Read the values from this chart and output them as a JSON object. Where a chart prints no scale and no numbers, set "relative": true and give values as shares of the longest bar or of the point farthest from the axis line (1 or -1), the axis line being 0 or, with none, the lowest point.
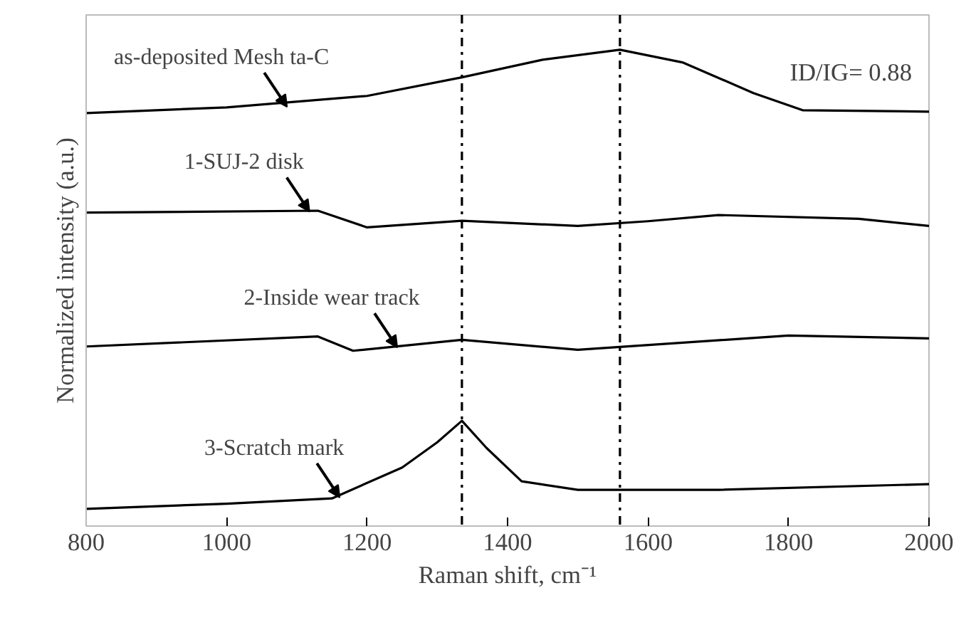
{
  "chart_data": {
    "type": "line",
    "relative": true,
    "xlabel": "Raman shift, cm⁻¹",
    "ylabel": "Normalized intensity (a.u.)",
    "xlim": [
      800,
      2000
    ],
    "xticks": [
      800,
      1000,
      1200,
      1400,
      1600,
      1800,
      2000
    ],
    "tick_labels": "x",
    "grid": false,
    "line_style": "solid",
    "marker": "none",
    "series": [
      {
        "color": "#000000",
        "x": [
          800,
          1000,
          1200,
          1335,
          1450,
          1560,
          1650,
          1750,
          1820,
          2000
        ],
        "values": [
          0.867,
          0.879,
          0.903,
          0.942,
          0.979,
          1.0,
          0.973,
          0.909,
          0.873,
          0.87
        ]
      },
      {
        "color": "#000000",
        "x": [
          800,
          1130,
          1200,
          1335,
          1500,
          1600,
          1700,
          1900,
          2000
        ],
        "values": [
          0.658,
          0.662,
          0.627,
          0.641,
          0.63,
          0.64,
          0.653,
          0.645,
          0.63
        ]
      },
      {
        "color": "#000000",
        "x": [
          800,
          1130,
          1180,
          1335,
          1500,
          1800,
          2000
        ],
        "values": [
          0.377,
          0.398,
          0.368,
          0.391,
          0.37,
          0.4,
          0.394
        ]
      },
      {
        "color": "#000000",
        "x": [
          800,
          1000,
          1150,
          1250,
          1300,
          1335,
          1370,
          1420,
          1500,
          1700,
          2000
        ],
        "values": [
          0.036,
          0.047,
          0.058,
          0.123,
          0.176,
          0.221,
          0.164,
          0.094,
          0.076,
          0.076,
          0.088
        ]
      }
    ],
    "ref_lines": [
      {
        "axis": "x",
        "value": 1335,
        "line_style": "dashdot",
        "color": "#000000"
      },
      {
        "axis": "x",
        "value": 1560,
        "line_style": "dashdot",
        "color": "#000000"
      }
    ],
    "annotations": [
      {
        "text": "as-deposited Mesh ta-C",
        "x": 1086,
        "y": 0.88
      },
      {
        "text": "1-SUJ-2 disk",
        "x": 1118,
        "y": 0.66
      },
      {
        "text": "2-Inside wear track",
        "x": 1243,
        "y": 0.375
      },
      {
        "text": "3-Scratch mark",
        "x": 1161,
        "y": 0.06
      },
      "ID/IG= 0.88"
    ]
  }
}
